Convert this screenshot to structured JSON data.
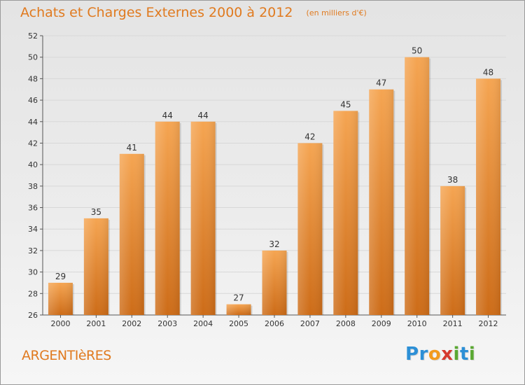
{
  "header": {
    "title": "Achats et Charges Externes 2000 à 2012",
    "unit": "(en milliers d'€)"
  },
  "footer": {
    "place": "ARGENTIèRES",
    "logo_letters": [
      "P",
      "r",
      "o",
      "x",
      "i",
      "t",
      "i"
    ],
    "logo_colors": [
      "#2c8fd6",
      "#2c8fd6",
      "#f39b1c",
      "#d63a2f",
      "#5aa832",
      "#2c8fd6",
      "#5aa832"
    ]
  },
  "colors": {
    "bar_top": "#f5a552",
    "bar_bottom": "#cd6c18",
    "title": "#e07a1f",
    "axis": "#555555",
    "grid": "#d8d8d8"
  },
  "chart_data": {
    "type": "bar",
    "title": "Achats et Charges Externes 2000 à 2012",
    "subtitle": "(en milliers d'€)",
    "xlabel": "",
    "ylabel": "",
    "categories": [
      "2000",
      "2001",
      "2002",
      "2003",
      "2004",
      "2005",
      "2006",
      "2007",
      "2008",
      "2009",
      "2010",
      "2011",
      "2012"
    ],
    "values": [
      29,
      35,
      41,
      44,
      44,
      27,
      32,
      42,
      45,
      47,
      50,
      38,
      48
    ],
    "ylim": [
      26,
      52
    ],
    "yticks": [
      26,
      28,
      30,
      32,
      34,
      36,
      38,
      40,
      42,
      44,
      46,
      48,
      50,
      52
    ],
    "grid": true,
    "legend": "none"
  }
}
